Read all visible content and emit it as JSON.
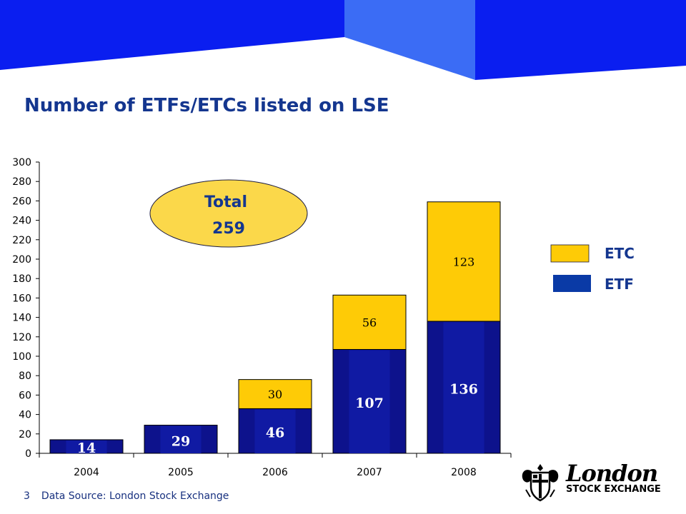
{
  "title": "Number of ETFs/ETCs listed on LSE",
  "colors": {
    "banner_dark": "#0a1ef0",
    "banner_light": "#3b6cf5",
    "title": "#14368f",
    "etf": "#0d128c",
    "etc": "#fecb06",
    "bubble": "#fbd84a"
  },
  "chart_data": {
    "type": "bar",
    "stacked": true,
    "categories": [
      "2004",
      "2005",
      "2006",
      "2007",
      "2008"
    ],
    "series": [
      {
        "name": "ETF",
        "values": [
          14,
          29,
          46,
          107,
          136
        ],
        "color": "#0d128c"
      },
      {
        "name": "ETC",
        "values": [
          0,
          0,
          30,
          56,
          123
        ],
        "color": "#fecb06"
      }
    ],
    "data_labels": {
      "ETF": [
        "14",
        "29",
        "46",
        "107",
        "136"
      ],
      "ETC": [
        "",
        "",
        "30",
        "56",
        "123"
      ]
    },
    "ylim": [
      0,
      300
    ],
    "yticks": [
      "0",
      "20",
      "40",
      "60",
      "80",
      "100",
      "120",
      "140",
      "160",
      "180",
      "200",
      "220",
      "240",
      "260",
      "280",
      "300"
    ],
    "legend": {
      "position": "right",
      "items": [
        "ETC",
        "ETF"
      ]
    },
    "callout": {
      "line1": "Total",
      "line2": "259"
    }
  },
  "footer": {
    "page_number": "3",
    "source": "Data Source:  London Stock Exchange"
  },
  "logo": {
    "word1": "London",
    "word2": "STOCK EXCHANGE"
  }
}
